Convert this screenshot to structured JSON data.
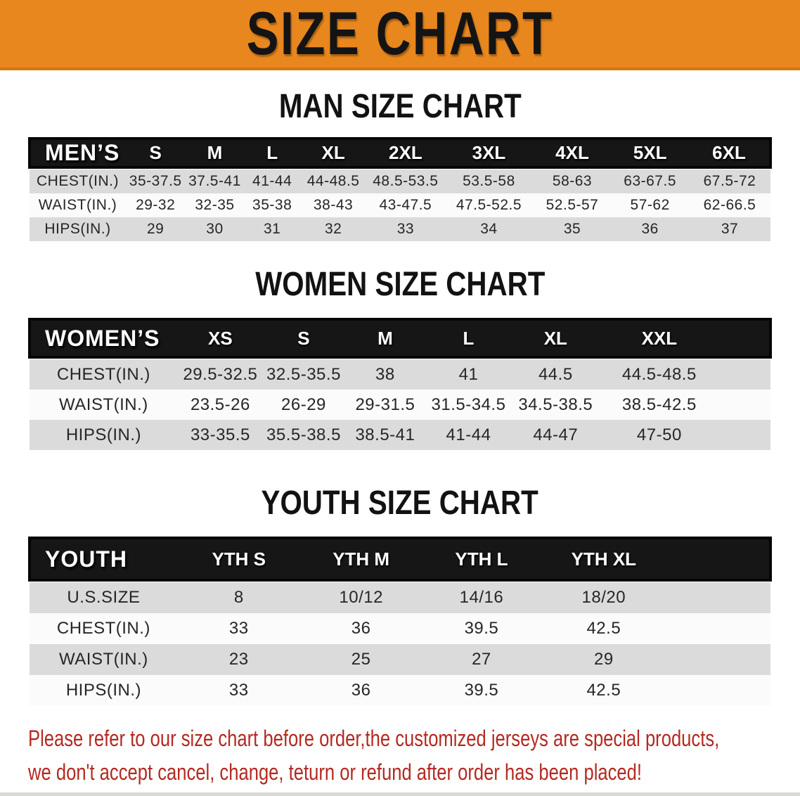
{
  "banner": {
    "title": "SIZE CHART"
  },
  "sections": [
    {
      "heading": "MAN SIZE CHART",
      "table": {
        "corner_label": "MEN’S",
        "columns": [
          "S",
          "M",
          "L",
          "XL",
          "2XL",
          "3XL",
          "4XL",
          "5XL",
          "6XL"
        ],
        "rows": [
          {
            "label": "CHEST(IN.)",
            "values": [
              "35-37.5",
              "37.5-41",
              "41-44",
              "44-48.5",
              "48.5-53.5",
              "53.5-58",
              "58-63",
              "63-67.5",
              "67.5-72"
            ]
          },
          {
            "label": "WAIST(IN.)",
            "values": [
              "29-32",
              "32-35",
              "35-38",
              "38-43",
              "43-47.5",
              "47.5-52.5",
              "52.5-57",
              "57-62",
              "62-66.5"
            ]
          },
          {
            "label": "HIPS(IN.)",
            "values": [
              "29",
              "30",
              "31",
              "32",
              "33",
              "34",
              "35",
              "36",
              "37"
            ]
          }
        ]
      }
    },
    {
      "heading": "WOMEN SIZE CHART",
      "table": {
        "corner_label": "WOMEN’S",
        "columns": [
          "XS",
          "S",
          "M",
          "L",
          "XL",
          "XXL"
        ],
        "rows": [
          {
            "label": "CHEST(IN.)",
            "values": [
              "29.5-32.5",
              "32.5-35.5",
              "38",
              "41",
              "44.5",
              "44.5-48.5"
            ]
          },
          {
            "label": "WAIST(IN.)",
            "values": [
              "23.5-26",
              "26-29",
              "29-31.5",
              "31.5-34.5",
              "34.5-38.5",
              "38.5-42.5"
            ]
          },
          {
            "label": "HIPS(IN.)",
            "values": [
              "33-35.5",
              "35.5-38.5",
              "38.5-41",
              "41-44",
              "44-47",
              "47-50"
            ]
          }
        ]
      }
    },
    {
      "heading": "YOUTH SIZE CHART",
      "table": {
        "corner_label": "YOUTH",
        "columns": [
          "YTH S",
          "YTH M",
          "YTH L",
          "YTH XL"
        ],
        "rows": [
          {
            "label": "U.S.SIZE",
            "values": [
              "8",
              "10/12",
              "14/16",
              "18/20"
            ]
          },
          {
            "label": "CHEST(IN.)",
            "values": [
              "33",
              "36",
              "39.5",
              "42.5"
            ]
          },
          {
            "label": "WAIST(IN.)",
            "values": [
              "23",
              "25",
              "27",
              "29"
            ]
          },
          {
            "label": "HIPS(IN.)",
            "values": [
              "33",
              "36",
              "39.5",
              "42.5"
            ]
          }
        ]
      }
    }
  ],
  "footer": {
    "line1": "Please refer to our size chart before order,the customized jerseys are special products,",
    "line2": "we don't accept cancel, change, teturn or refund after order has been placed!"
  },
  "colors": {
    "banner_bg": "#E8871E",
    "header_bar": "#161616",
    "row_gray": "#DBDBDB",
    "row_white": "#FBFBFB",
    "footer_red": "#B32A22"
  }
}
